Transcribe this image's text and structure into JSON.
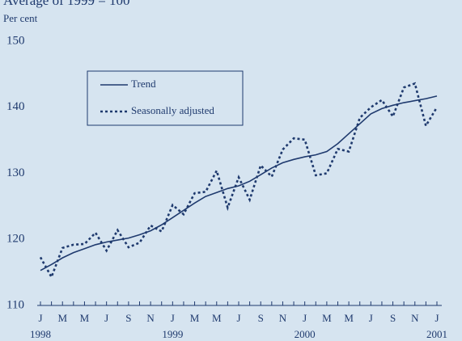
{
  "chart_data": {
    "type": "line",
    "title": "Average of 1999 = 100",
    "ylabel": "Per cent",
    "categories": [
      "J",
      null,
      "M",
      null,
      "M",
      null,
      "J",
      null,
      "S",
      null,
      "N",
      null,
      "J",
      null,
      "M",
      null,
      "M",
      null,
      "J",
      null,
      "S",
      null,
      "N",
      null,
      "J",
      null,
      "M",
      null,
      "M",
      null,
      "J",
      null,
      "S",
      null,
      "N",
      null,
      "J"
    ],
    "year_labels": [
      "1998",
      "1999",
      "2000",
      "2001"
    ],
    "series": [
      {
        "name": "Trend",
        "color": "#1f3a6e",
        "style": "solid",
        "values": [
          115.3,
          116.2,
          117.2,
          118.0,
          118.6,
          119.2,
          119.6,
          119.9,
          120.2,
          120.7,
          121.3,
          122.2,
          123.3,
          124.4,
          125.5,
          126.5,
          127.1,
          127.7,
          128.1,
          128.8,
          129.8,
          130.8,
          131.6,
          132.1,
          132.5,
          132.8,
          133.3,
          134.5,
          136.0,
          137.5,
          139.0,
          139.8,
          140.3,
          140.7,
          141.0,
          141.3,
          141.7
        ]
      },
      {
        "name": "Seasonally adjusted",
        "color": "#1f3a6e",
        "style": "dotted",
        "values": [
          117.3,
          114.3,
          118.7,
          119.2,
          119.3,
          121.0,
          118.3,
          121.4,
          118.8,
          119.5,
          122.1,
          121.2,
          125.2,
          123.8,
          127.0,
          127.2,
          130.4,
          124.8,
          129.4,
          126.0,
          131.2,
          129.5,
          133.6,
          135.3,
          135.1,
          129.7,
          130.0,
          133.7,
          133.3,
          138.4,
          140.0,
          141.1,
          138.6,
          143.0,
          143.6,
          137.2,
          140.0
        ]
      }
    ],
    "ylim": [
      110,
      150
    ],
    "yticks": [
      110,
      120,
      130,
      140,
      150
    ],
    "grid": false,
    "legend": "upper left"
  }
}
